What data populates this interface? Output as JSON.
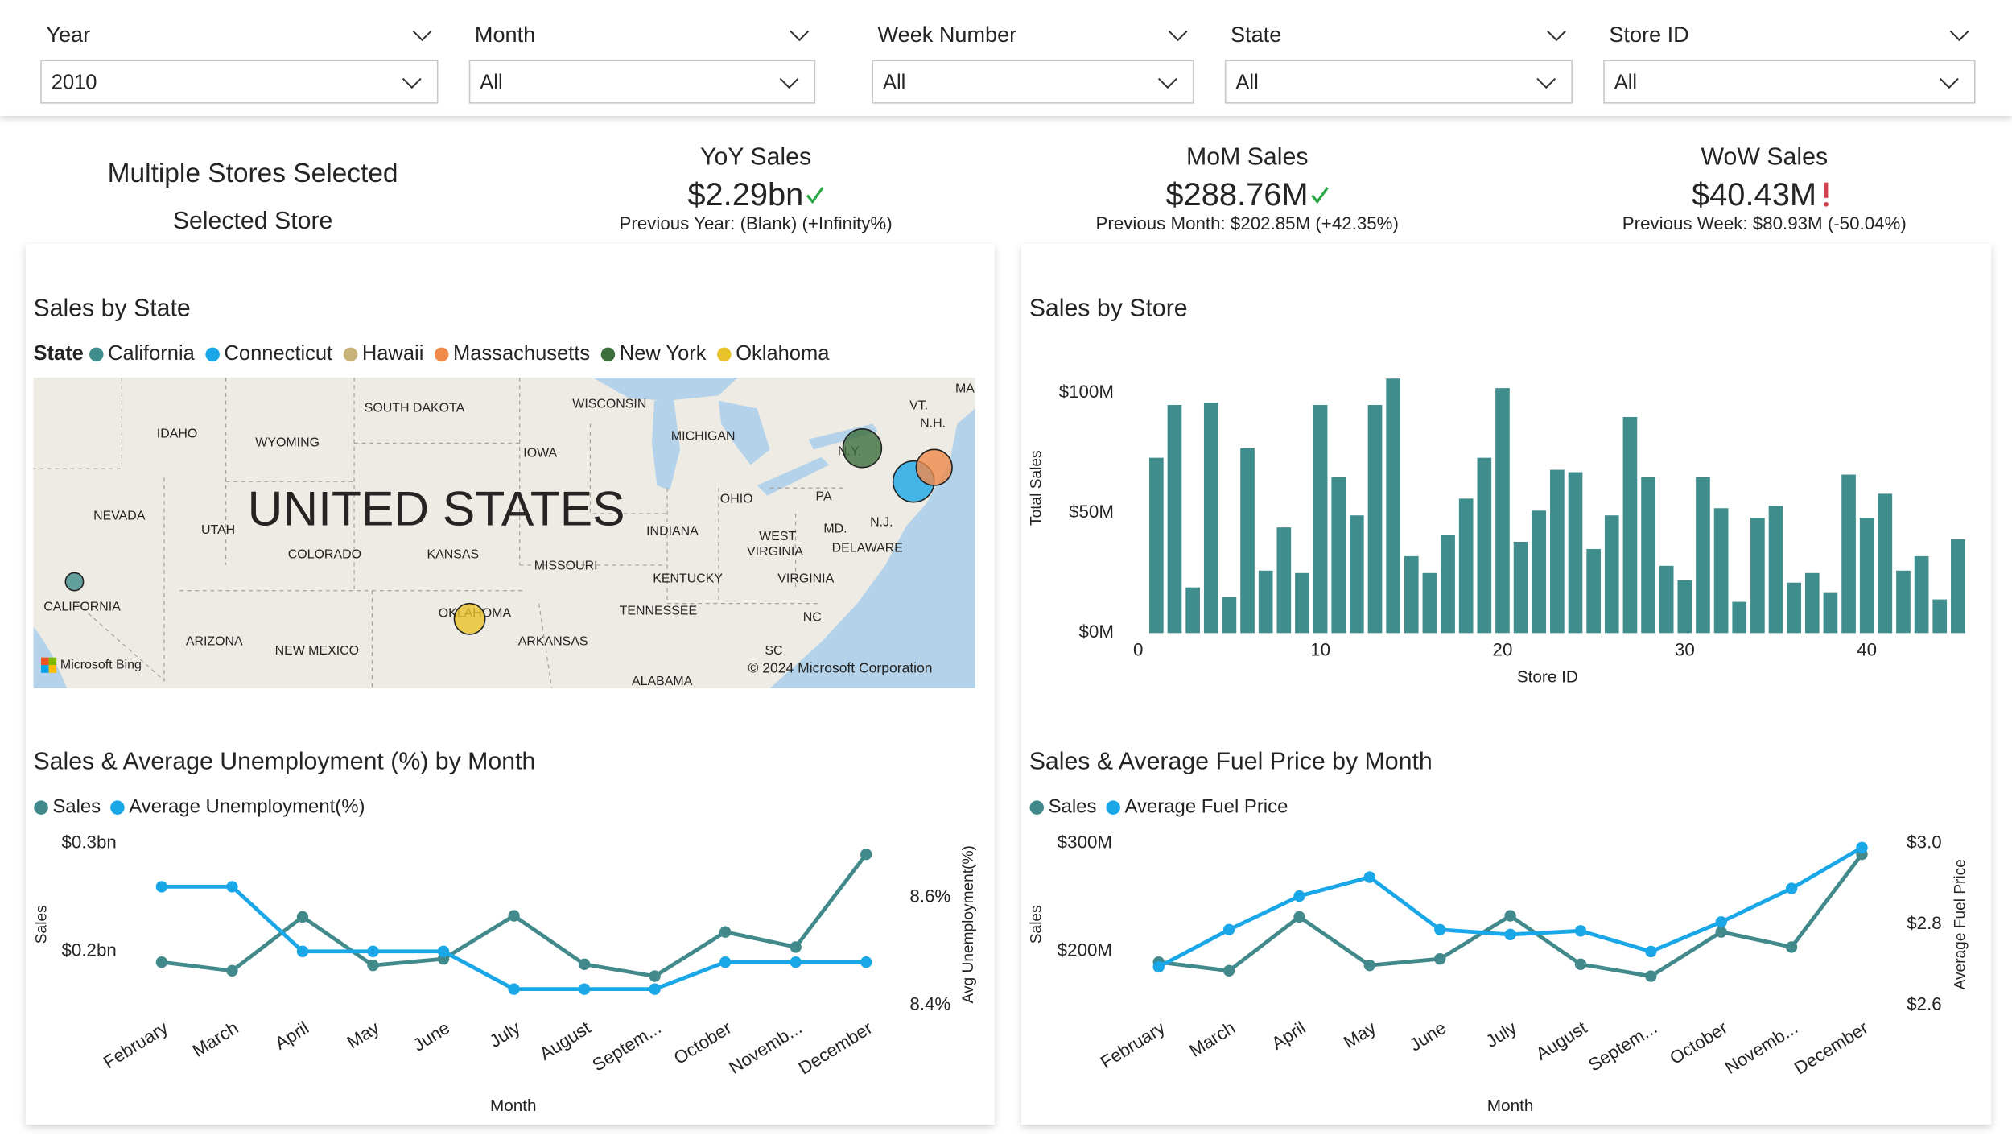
{
  "filters": [
    {
      "label": "Year",
      "value": "2010"
    },
    {
      "label": "Month",
      "value": "All"
    },
    {
      "label": "Week Number",
      "value": "All"
    },
    {
      "label": "State",
      "value": "All"
    },
    {
      "label": "Store ID",
      "value": "All"
    }
  ],
  "cards": {
    "store": {
      "title": "Multiple Stores Selected",
      "subtitle": "Selected Store"
    },
    "kpis": [
      {
        "title": "YoY Sales",
        "value": "$2.29bn",
        "icon": "check",
        "color": "#2aa845",
        "detail": "Previous Year: (Blank) (+Infinity%)"
      },
      {
        "title": "MoM Sales",
        "value": "$288.76M",
        "icon": "check",
        "color": "#2aa845",
        "detail": "Previous Month: $202.85M (+42.35%)"
      },
      {
        "title": "WoW Sales",
        "value": "$40.43M",
        "icon": "alert",
        "color": "#d1404f",
        "detail": "Previous Week: $80.93M (-50.04%)"
      }
    ]
  },
  "chart_data": [
    {
      "type": "map",
      "title": "Sales by State",
      "legend_title": "State",
      "series": [
        {
          "name": "California",
          "color": "#3f8d8c"
        },
        {
          "name": "Connecticut",
          "color": "#1aa7e8"
        },
        {
          "name": "Hawaii",
          "color": "#c8b37b"
        },
        {
          "name": "Massachusetts",
          "color": "#ef8a4a"
        },
        {
          "name": "New York",
          "color": "#3d6f3d"
        },
        {
          "name": "Oklahoma",
          "color": "#e8c329"
        }
      ],
      "labels": [
        "IDAHO",
        "WYOMING",
        "SOUTH DAKOTA",
        "WISCONSIN",
        "MICHIGAN",
        "IOWA",
        "NEVADA",
        "UTAH",
        "UNITED STATES",
        "COLORADO",
        "KANSAS",
        "MISSOURI",
        "INDIANA",
        "OHIO",
        "PA",
        "N.Y.",
        "VT.",
        "N.H.",
        "MA",
        "N.J.",
        "MD.",
        "DELAWARE",
        "WEST",
        "VIRGINIA",
        "VIRGINIA",
        "KENTUCKY",
        "TENNESSEE",
        "NC",
        "SC",
        "ALABAMA",
        "ARKANSAS",
        "OKLAHOMA",
        "NEW MEXICO",
        "ARIZONA",
        "CALIFORNIA"
      ],
      "attribution": "Microsoft Bing",
      "copyright": "© 2024 Microsoft Corporation"
    },
    {
      "type": "bar",
      "title": "Sales by Store",
      "x_label": "Store ID",
      "y_label": "Total Sales",
      "color": "#3f8d8c",
      "x": [
        1,
        2,
        3,
        4,
        5,
        6,
        7,
        8,
        9,
        10,
        11,
        12,
        13,
        14,
        15,
        16,
        17,
        18,
        19,
        20,
        21,
        22,
        23,
        24,
        25,
        26,
        27,
        28,
        29,
        30,
        31,
        32,
        33,
        34,
        35,
        36,
        37,
        38,
        39,
        40,
        41,
        42,
        43,
        44,
        45
      ],
      "values": [
        73,
        95,
        19,
        96,
        15,
        77,
        26,
        44,
        25,
        95,
        65,
        49,
        95,
        106,
        32,
        25,
        41,
        56,
        73,
        102,
        38,
        51,
        68,
        67,
        35,
        49,
        90,
        65,
        28,
        22,
        65,
        52,
        13,
        48,
        53,
        21,
        25,
        17,
        66,
        48,
        58,
        26,
        32,
        14,
        39
      ],
      "xlim": [
        0,
        45.5
      ],
      "xticks": [
        0,
        10,
        20,
        30,
        40
      ],
      "ylim": [
        0,
        108
      ],
      "yticks": [
        {
          "value": 0,
          "label": "$0M"
        },
        {
          "value": 50,
          "label": "$50M"
        },
        {
          "value": 100,
          "label": "$100M"
        }
      ]
    },
    {
      "type": "line",
      "title": "Sales & Average Unemployment (%) by Month",
      "x_label": "Month",
      "y_label": "Sales",
      "y2_label": "Avg Unemployment(%)",
      "categories": [
        "February",
        "March",
        "April",
        "May",
        "June",
        "July",
        "August",
        "Septem...",
        "October",
        "Novemb...",
        "December"
      ],
      "series": [
        {
          "name": "Sales",
          "color": "#41898b",
          "values": [
            0.19,
            0.182,
            0.232,
            0.187,
            0.193,
            0.233,
            0.188,
            0.177,
            0.218,
            0.204,
            0.29
          ]
        },
        {
          "name": "Average Unemployment(%)",
          "color": "#1aa7e8",
          "axis": "y2",
          "values": [
            8.62,
            8.62,
            8.5,
            8.5,
            8.5,
            8.43,
            8.43,
            8.43,
            8.48,
            8.48,
            8.48
          ]
        }
      ],
      "ylim": [
        0.15,
        0.3
      ],
      "yticks": [
        {
          "value": 0.2,
          "label": "$0.2bn"
        },
        {
          "value": 0.3,
          "label": "$0.3bn"
        }
      ],
      "y2lim": [
        8.4,
        8.7
      ],
      "y2ticks": [
        {
          "value": 8.4,
          "label": "8.4%"
        },
        {
          "value": 8.6,
          "label": "8.6%"
        }
      ]
    },
    {
      "type": "line",
      "title": "Sales & Average Fuel Price by Month",
      "x_label": "Month",
      "y_label": "Sales",
      "y2_label": "Average Fuel Price",
      "categories": [
        "February",
        "March",
        "April",
        "May",
        "June",
        "July",
        "August",
        "Septem...",
        "October",
        "Novemb...",
        "December"
      ],
      "series": [
        {
          "name": "Sales",
          "color": "#41898b",
          "values": [
            190,
            182,
            232,
            187,
            193,
            233,
            188,
            177,
            218,
            204,
            290
          ]
        },
        {
          "name": "Average Fuel Price",
          "color": "#1aa7e8",
          "axis": "y2",
          "values": [
            2.695,
            2.787,
            2.87,
            2.917,
            2.787,
            2.775,
            2.784,
            2.733,
            2.806,
            2.889,
            2.99
          ]
        }
      ],
      "ylim": [
        150,
        300
      ],
      "yticks": [
        {
          "value": 200,
          "label": "$200M"
        },
        {
          "value": 300,
          "label": "$300M"
        }
      ],
      "y2lim": [
        2.6,
        3.0
      ],
      "y2ticks": [
        {
          "value": 2.6,
          "label": "$2.6"
        },
        {
          "value": 2.8,
          "label": "$2.8"
        },
        {
          "value": 3.0,
          "label": "$3.0"
        }
      ]
    }
  ]
}
